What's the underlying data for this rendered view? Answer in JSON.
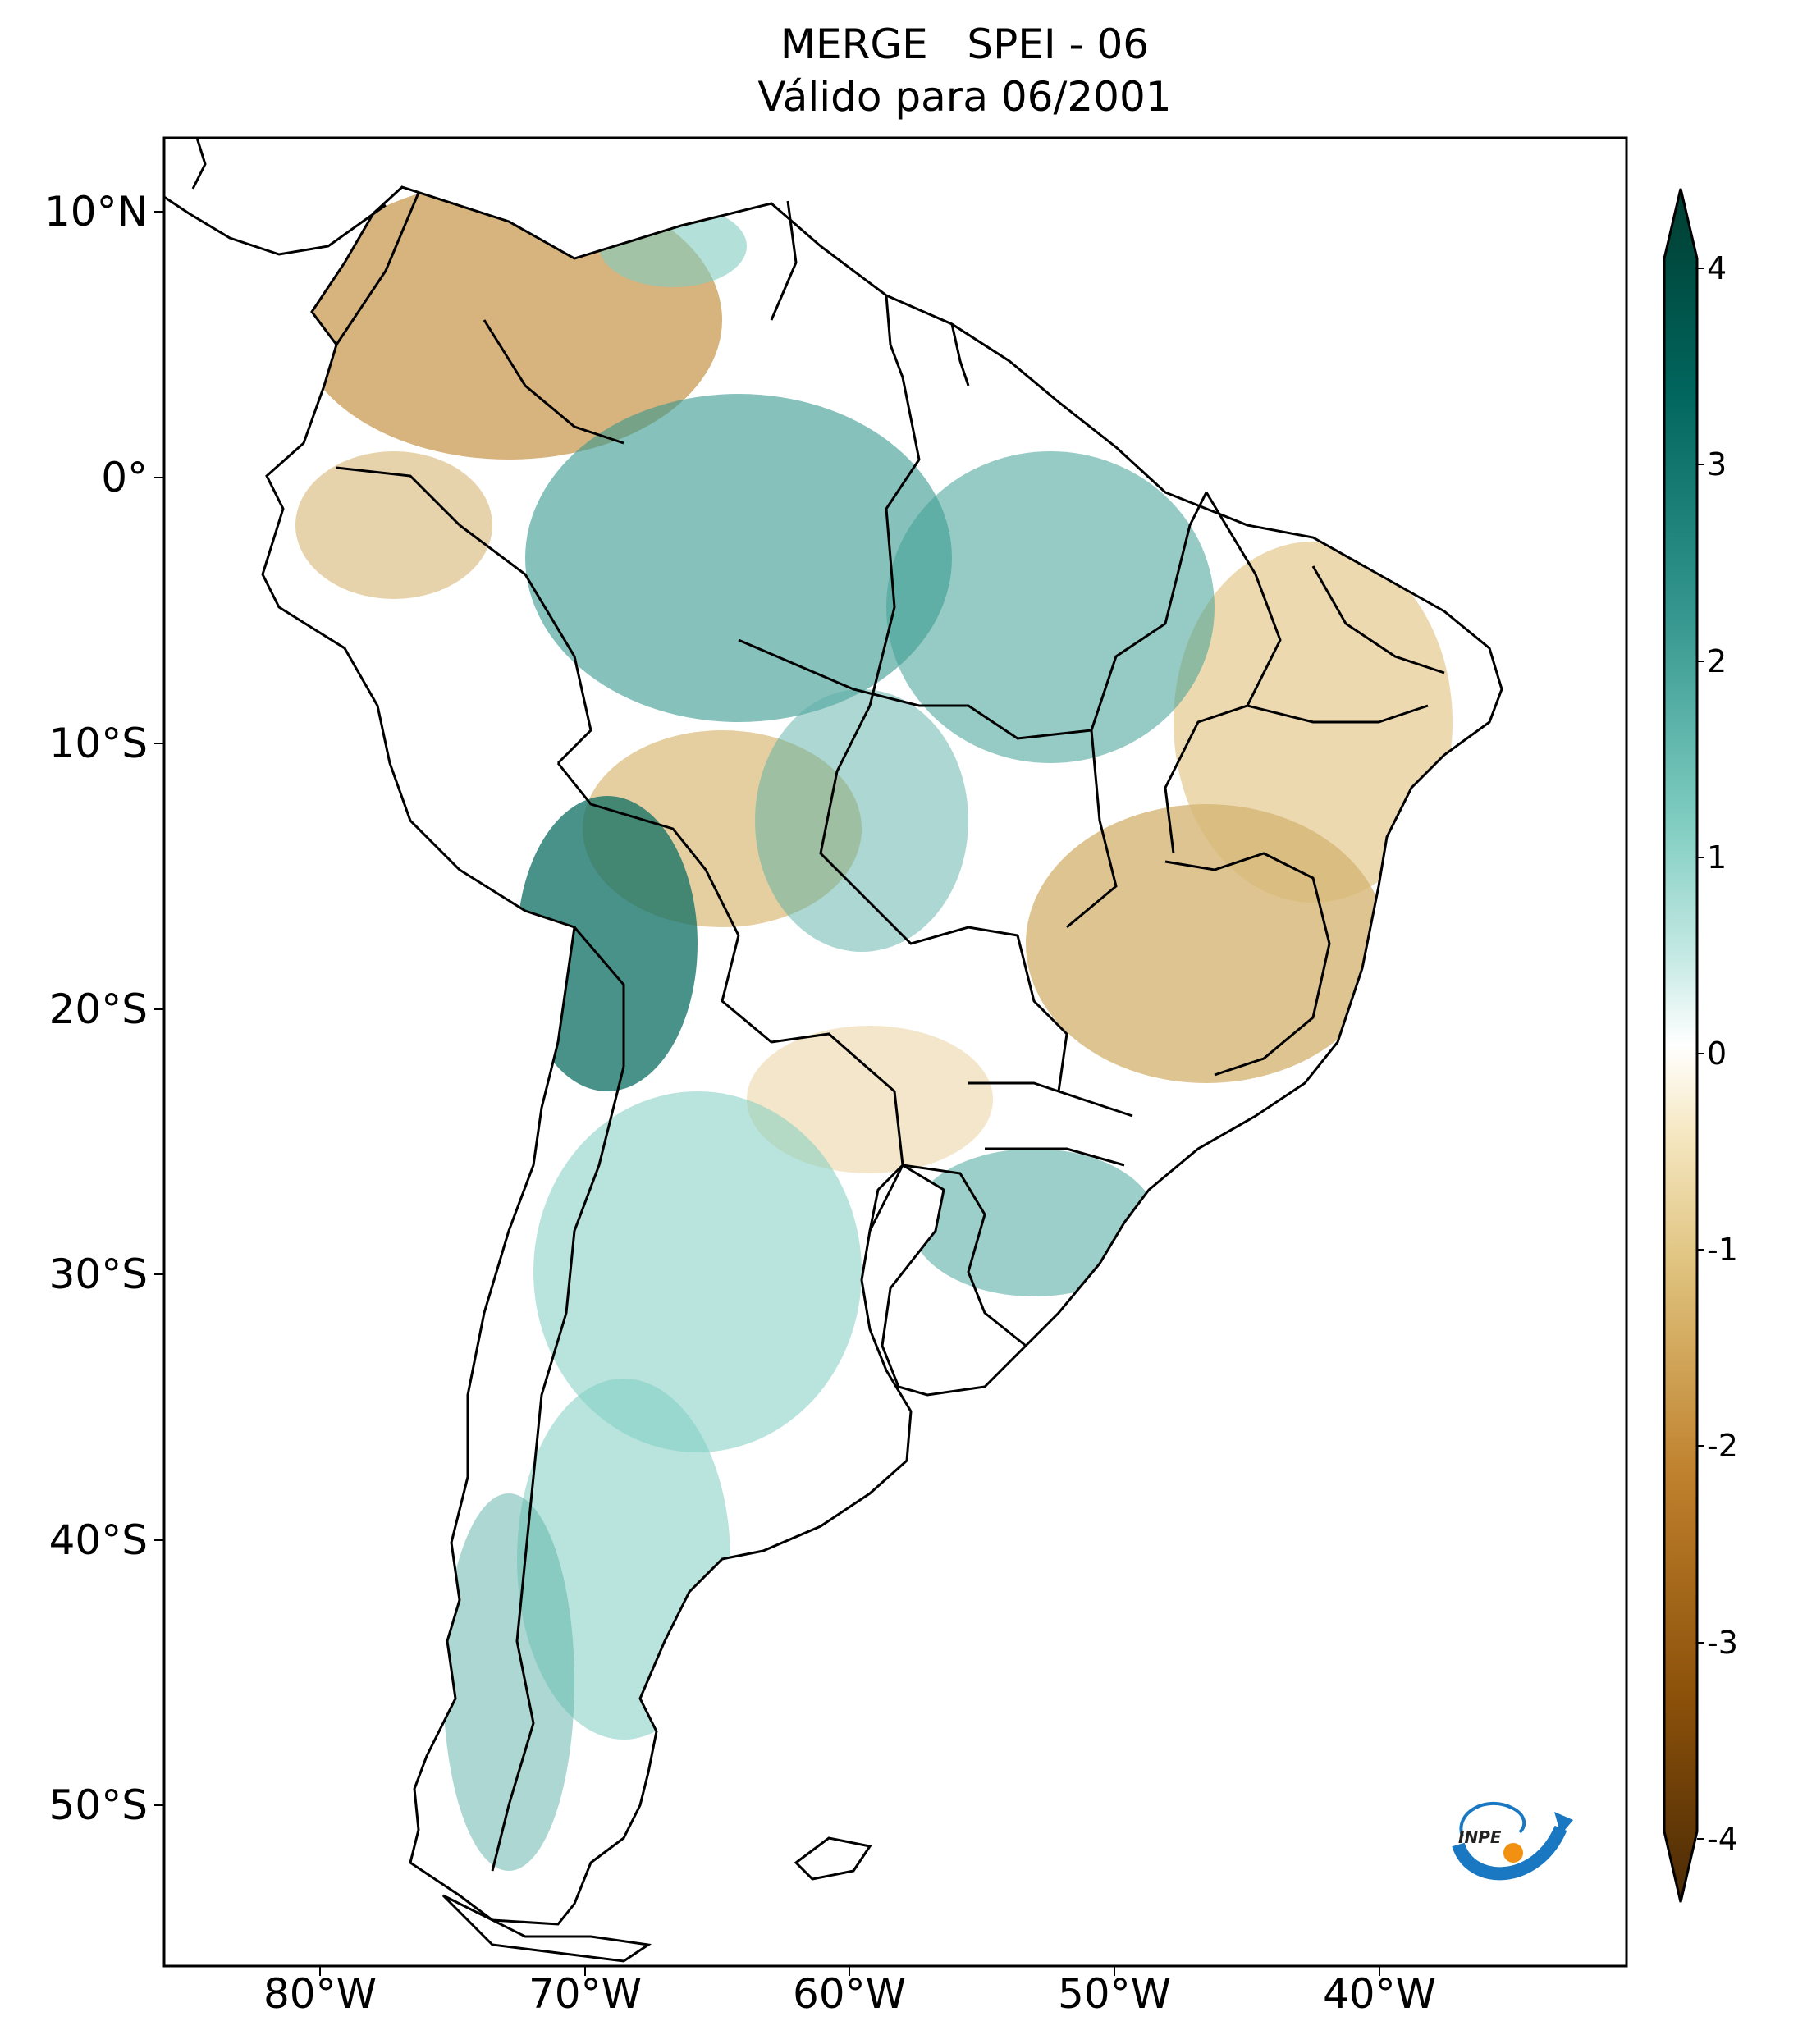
{
  "title": {
    "line1": "MERGE   SPEI - 06",
    "line2": "Válido para 06/2001"
  },
  "axes": {
    "lat_labels": [
      "10°N",
      "0°",
      "10°S",
      "20°S",
      "30°S",
      "40°S",
      "50°S"
    ],
    "lon_labels": [
      "80°W",
      "70°W",
      "60°W",
      "50°W",
      "40°W"
    ]
  },
  "colorbar": {
    "ticks": [
      "4",
      "3",
      "2",
      "1",
      "0",
      "-1",
      "-2",
      "-3",
      "-4"
    ],
    "range": [
      -4,
      4
    ],
    "colors": [
      "#4a2a05",
      "#8c510a",
      "#bf812d",
      "#dfc27d",
      "#f6e8c3",
      "#ffffff",
      "#c7eae5",
      "#80cdc1",
      "#35978f",
      "#01665e",
      "#003c30"
    ]
  },
  "logo": {
    "text": "INPE"
  }
}
